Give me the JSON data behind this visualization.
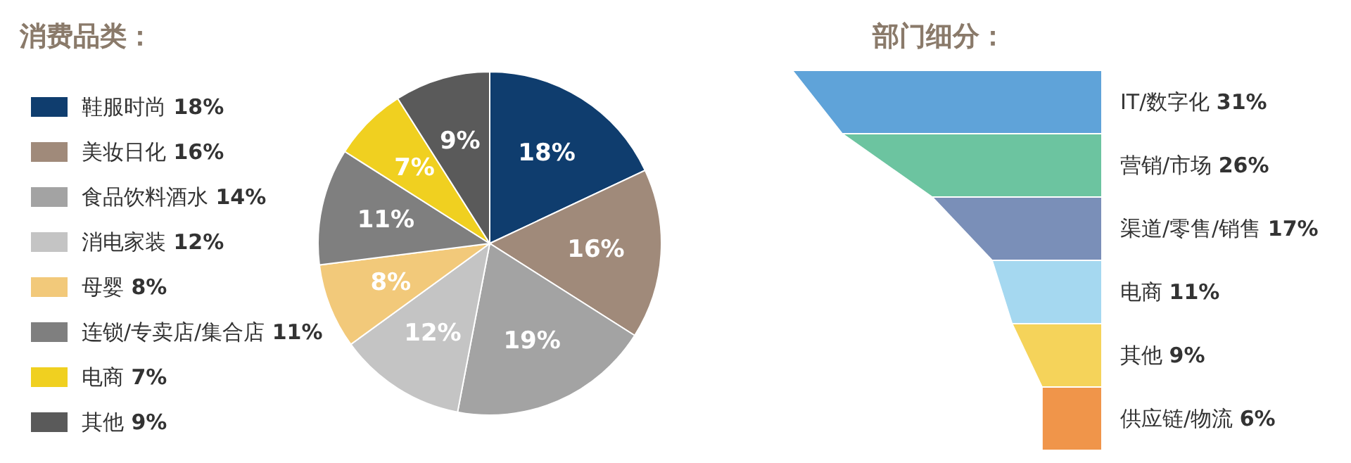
{
  "chart_data": [
    {
      "type": "pie",
      "title": "消费品类：",
      "categories": [
        "鞋服时尚 18%",
        "美妆日化 16%",
        "食品饮料酒水 14%",
        "消电家装 12%",
        "母婴 8%",
        "连锁/专卖店/集合店 11%",
        "电商 7%",
        "其他 9%"
      ],
      "values": [
        18,
        16,
        19,
        12,
        8,
        11,
        7,
        9
      ],
      "value_labels": [
        "18%",
        "16%",
        "19%",
        "12%",
        "8%",
        "11%",
        "7%",
        "9%"
      ],
      "colors": [
        "#0f3d6e",
        "#a08a7a",
        "#a3a3a3",
        "#c4c4c4",
        "#f2c97a",
        "#7f7f7f",
        "#f0d020",
        "#5a5a5a"
      ],
      "legend": "left"
    },
    {
      "type": "other",
      "title": "部门细分：",
      "categories": [
        "IT/数字化",
        "营销/市场",
        "渠道/零售/销售",
        "电商",
        "其他",
        "供应链/物流"
      ],
      "values": [
        31,
        26,
        17,
        11,
        9,
        6
      ],
      "value_labels": [
        "31%",
        "26%",
        "17%",
        "11%",
        "9%",
        "6%"
      ],
      "colors": [
        "#5fa3d9",
        "#6cc4a0",
        "#7a8fb8",
        "#a5d8f0",
        "#f5d35a",
        "#f0954a"
      ]
    }
  ]
}
